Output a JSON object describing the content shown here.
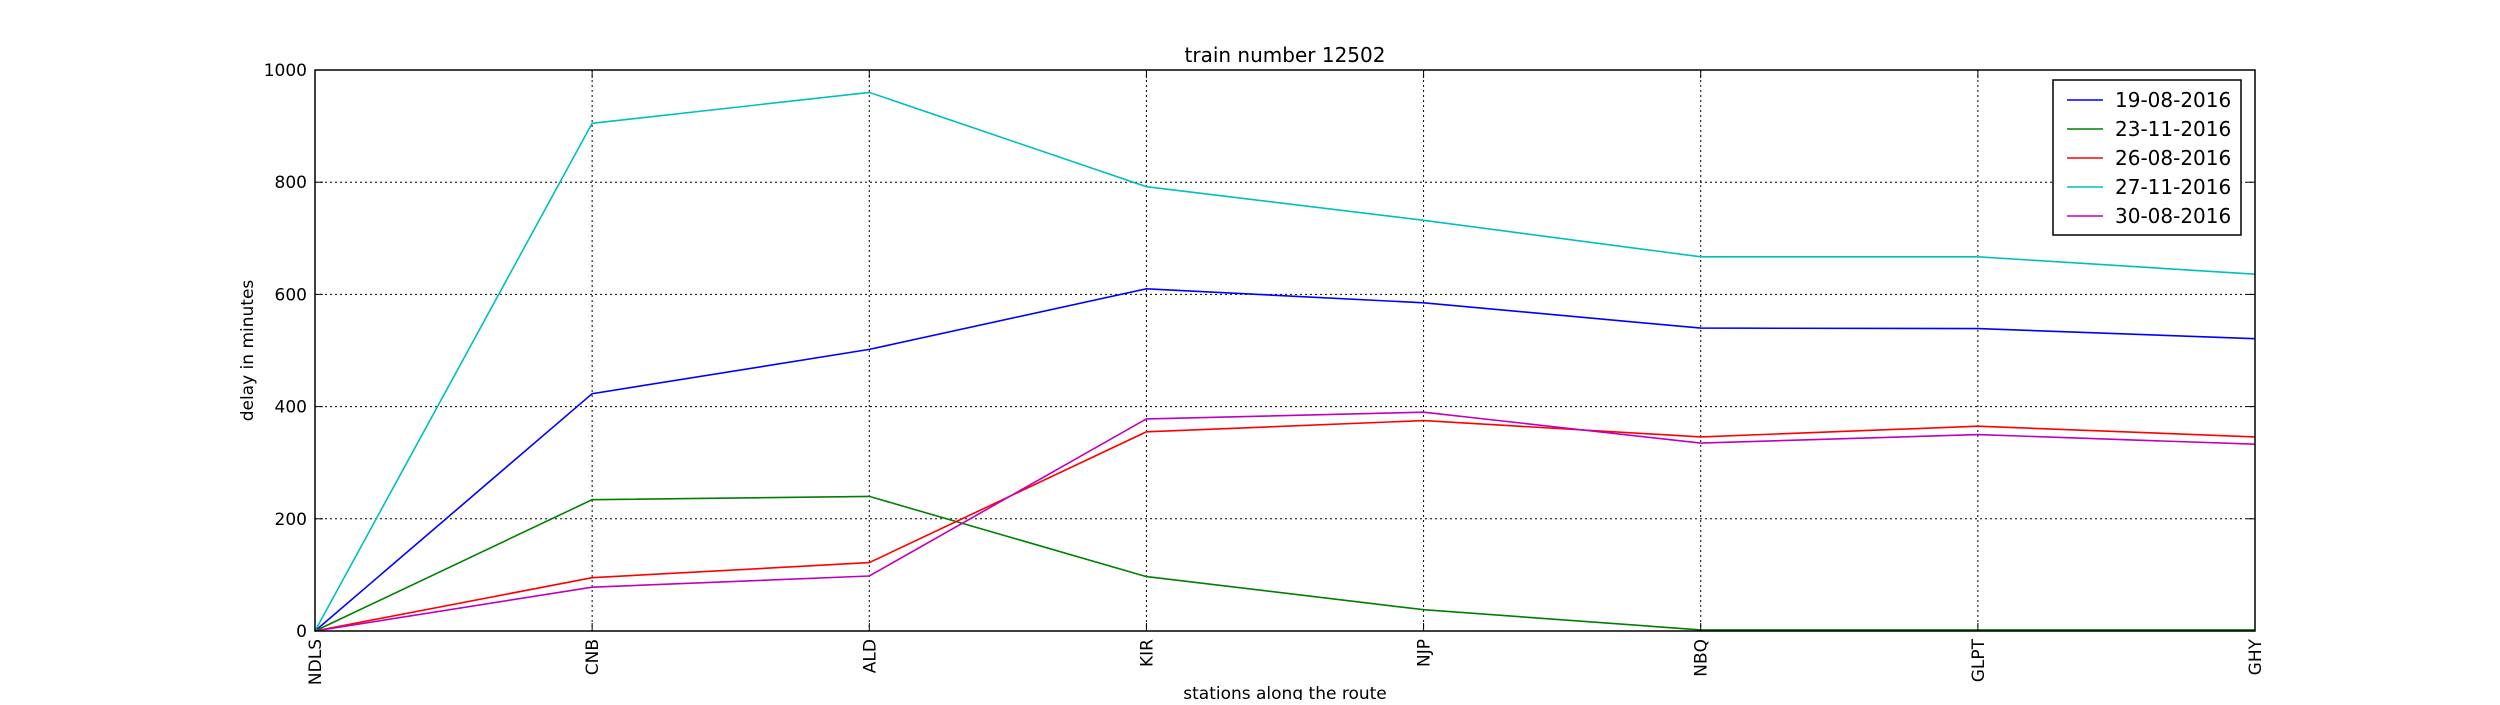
{
  "chart_data": {
    "type": "line",
    "title": "train number 12502",
    "xlabel": "stations along the route",
    "ylabel": "delay in minutes",
    "categories": [
      "NDLS",
      "CNB",
      "ALD",
      "KIR",
      "NJP",
      "NBQ",
      "GLPT",
      "GHY"
    ],
    "ylim": [
      0,
      1000
    ],
    "yticks": [
      0,
      200,
      400,
      600,
      800,
      1000
    ],
    "grid": true,
    "legend_position": "top-right",
    "series": [
      {
        "name": "19-08-2016",
        "color": "#0000ff",
        "values": [
          0,
          423,
          502,
          610,
          585,
          540,
          539,
          521
        ]
      },
      {
        "name": "23-11-2016",
        "color": "#008000",
        "values": [
          0,
          234,
          240,
          97,
          38,
          2,
          2,
          2
        ]
      },
      {
        "name": "26-08-2016",
        "color": "#ff0000",
        "values": [
          0,
          95,
          122,
          355,
          375,
          346,
          365,
          346
        ]
      },
      {
        "name": "27-11-2016",
        "color": "#00bfbf",
        "values": [
          0,
          905,
          960,
          792,
          732,
          667,
          667,
          636
        ]
      },
      {
        "name": "30-08-2016",
        "color": "#bf00bf",
        "values": [
          0,
          78,
          98,
          378,
          390,
          335,
          350,
          333
        ]
      }
    ]
  }
}
